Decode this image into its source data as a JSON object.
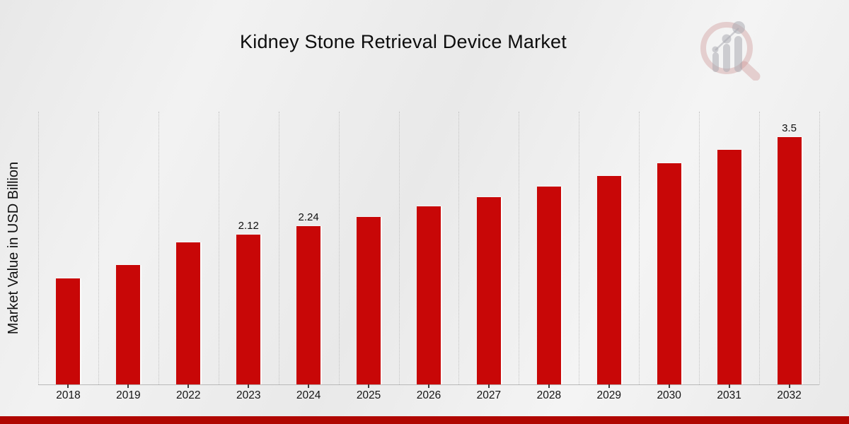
{
  "header": {
    "title": "Kidney Stone Retrieval Device Market"
  },
  "chart_data": {
    "type": "bar",
    "title": "Kidney Stone Retrieval Device Market",
    "xlabel": "",
    "ylabel": "Market Value in USD Billion",
    "categories": [
      "2018",
      "2019",
      "2022",
      "2023",
      "2024",
      "2025",
      "2026",
      "2027",
      "2028",
      "2029",
      "2030",
      "2031",
      "2032"
    ],
    "values": [
      1.5,
      1.69,
      2.01,
      2.12,
      2.24,
      2.37,
      2.52,
      2.65,
      2.8,
      2.95,
      3.13,
      3.32,
      3.5
    ],
    "bar_labels": [
      "",
      "",
      "",
      "2.12",
      "2.24",
      "",
      "",
      "",
      "",
      "",
      "",
      "",
      "3.5"
    ],
    "ylim": [
      0,
      3.87
    ],
    "y_axis_ticks_visible": false,
    "grid": "vertical-dotted",
    "legend": "none",
    "bar_color": "#c80707"
  },
  "branding": {
    "logo_icon": "magnifier-bar-chart-logo",
    "logo_ring_color": "rgba(205,150,150,0.40)",
    "logo_bar_color": "rgba(172,172,178,0.55)"
  },
  "footer": {
    "banner_color": "#b00600"
  }
}
